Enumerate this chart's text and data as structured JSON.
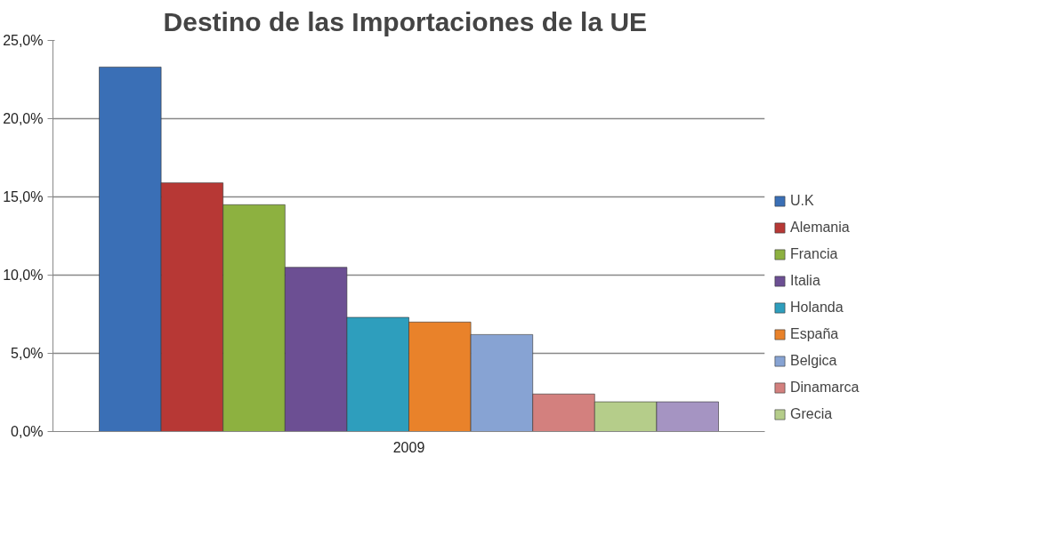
{
  "chart_data": {
    "type": "bar",
    "title": "Destino de las  Importaciones de la UE",
    "categories": [
      "2009"
    ],
    "series": [
      {
        "name": "U.K",
        "color": "#3a6fb6",
        "values": [
          23.3
        ]
      },
      {
        "name": "Alemania",
        "color": "#b73835",
        "values": [
          15.9
        ]
      },
      {
        "name": "Francia",
        "color": "#8db140",
        "values": [
          14.5
        ]
      },
      {
        "name": "Italia",
        "color": "#6c4f93",
        "values": [
          10.5
        ]
      },
      {
        "name": "Holanda",
        "color": "#2e9ebd",
        "values": [
          7.3
        ]
      },
      {
        "name": "España",
        "color": "#e9822a",
        "values": [
          7.0
        ]
      },
      {
        "name": "Belgica",
        "color": "#87a3d3",
        "values": [
          6.2
        ]
      },
      {
        "name": "Dinamarca",
        "color": "#d3807e",
        "values": [
          2.4
        ]
      },
      {
        "name": "Grecia",
        "color": "#b5cd8a",
        "values": [
          1.9
        ]
      },
      {
        "color": "#a594c2",
        "values": [
          1.9
        ]
      }
    ],
    "ylim": [
      0,
      25
    ],
    "yticks": [
      {
        "value": 0,
        "label": "0,0%"
      },
      {
        "value": 5,
        "label": "5,0%"
      },
      {
        "value": 10,
        "label": "10,0%"
      },
      {
        "value": 15,
        "label": "15,0%"
      },
      {
        "value": 20,
        "label": "20,0%"
      },
      {
        "value": 25,
        "label": "25,0%"
      }
    ],
    "grid": "y",
    "legend": "right"
  }
}
